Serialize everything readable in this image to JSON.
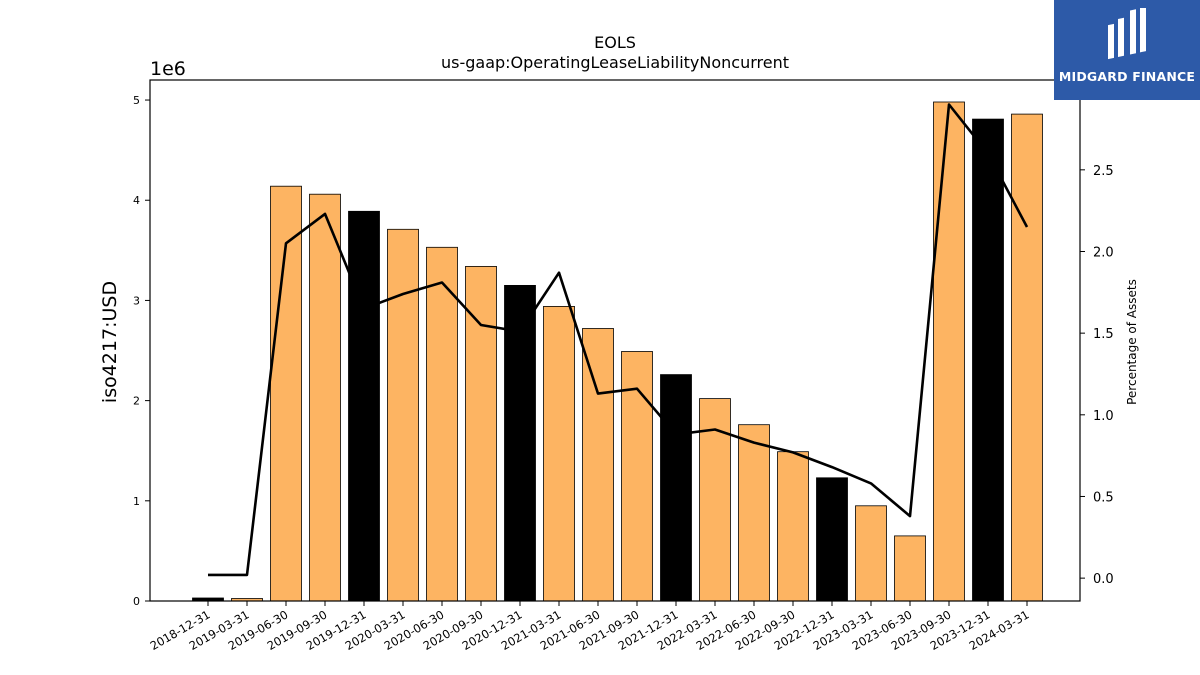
{
  "chart_data": {
    "type": "bar",
    "title": "EOLS",
    "subtitle": "us-gaap:OperatingLeaseLiabilityNoncurrent",
    "ylabel": "iso4217:USD",
    "y_offset_label": "1e6",
    "y2label": "Percentage of Assets",
    "ylim": [
      0,
      5200000
    ],
    "y2lim": [
      -0.14,
      3.05
    ],
    "yticks": [
      0,
      1000000,
      2000000,
      3000000,
      4000000,
      5000000
    ],
    "ytick_labels": [
      "0",
      "1",
      "2",
      "3",
      "4",
      "5"
    ],
    "y2ticks": [
      0.0,
      0.5,
      1.0,
      1.5,
      2.0,
      2.5
    ],
    "y2tick_labels": [
      "0.0",
      "0.5",
      "1.0",
      "1.5",
      "2.0",
      "2.5"
    ],
    "grid": false,
    "categories": [
      "2018-12-31",
      "2019-03-31",
      "2019-06-30",
      "2019-09-30",
      "2019-12-31",
      "2020-03-31",
      "2020-06-30",
      "2020-09-30",
      "2020-12-31",
      "2021-03-31",
      "2021-06-30",
      "2021-09-30",
      "2021-12-31",
      "2022-03-31",
      "2022-06-30",
      "2022-09-30",
      "2022-12-31",
      "2023-03-31",
      "2023-06-30",
      "2023-09-30",
      "2023-12-31",
      "2024-03-31"
    ],
    "series": [
      {
        "type": "bar",
        "values": [
          30000,
          25000,
          4140000,
          4060000,
          3890000,
          3710000,
          3530000,
          3340000,
          3150000,
          2940000,
          2720000,
          2490000,
          2260000,
          2020000,
          1760000,
          1490000,
          1230000,
          950000,
          650000,
          4980000,
          4810000,
          4860000
        ],
        "bar_colors": [
          "#000000",
          "#fdb462",
          "#fdb462",
          "#fdb462",
          "#000000",
          "#fdb462",
          "#fdb462",
          "#fdb462",
          "#000000",
          "#fdb462",
          "#fdb462",
          "#fdb462",
          "#000000",
          "#fdb462",
          "#fdb462",
          "#fdb462",
          "#000000",
          "#fdb462",
          "#fdb462",
          "#fdb462",
          "#000000",
          "#fdb462"
        ]
      },
      {
        "type": "line",
        "axis": "right",
        "values": [
          0.02,
          0.02,
          2.05,
          2.23,
          1.65,
          1.74,
          1.81,
          1.55,
          1.51,
          1.87,
          1.13,
          1.16,
          0.88,
          0.91,
          0.83,
          0.77,
          0.68,
          0.58,
          0.38,
          2.9,
          2.6,
          2.15
        ],
        "color": "#000000"
      }
    ]
  },
  "logo": {
    "text": "MIDGARD FINANCE",
    "color": "#2d5aa8"
  }
}
